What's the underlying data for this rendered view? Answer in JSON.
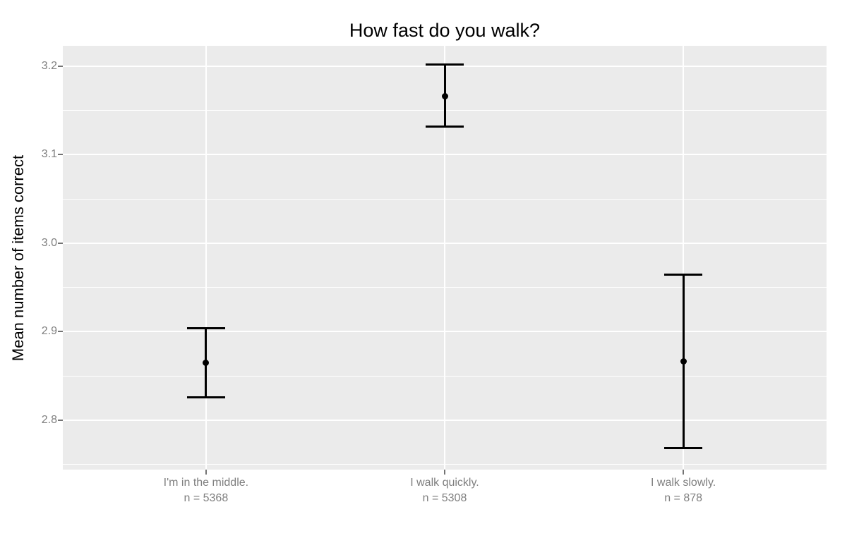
{
  "chart_data": {
    "type": "scatter",
    "subtype": "point-with-errorbars",
    "title": "How fast do you walk?",
    "xlabel": "",
    "ylabel": "Mean number of items correct",
    "categories": [
      {
        "label": "I'm in the middle.",
        "n_label": "n = 5368",
        "mean": 2.865,
        "ci_low": 2.826,
        "ci_high": 2.904
      },
      {
        "label": "I walk quickly.",
        "n_label": "n = 5308",
        "mean": 3.166,
        "ci_low": 3.132,
        "ci_high": 3.202
      },
      {
        "label": "I walk slowly.",
        "n_label": "n = 878",
        "mean": 2.866,
        "ci_low": 2.768,
        "ci_high": 2.964
      }
    ],
    "yticks_major": [
      3.2,
      3.1,
      3.0,
      2.9,
      2.8
    ],
    "ytick_labels": [
      "3.2",
      "3.1",
      "3.0",
      "2.9",
      "2.8"
    ],
    "yticks_minor": [
      3.15,
      3.05,
      2.95,
      2.85,
      2.75
    ],
    "ylim": [
      2.744,
      3.223
    ],
    "grid": true,
    "legend": null
  },
  "style": {
    "panel_bg": "#ebebeb",
    "grid_color": "#ffffff",
    "errorbar_color": "#000000",
    "axis_text_color": "#7f7f7f",
    "title_color": "#000000",
    "tick_mark_color": "#737373"
  }
}
